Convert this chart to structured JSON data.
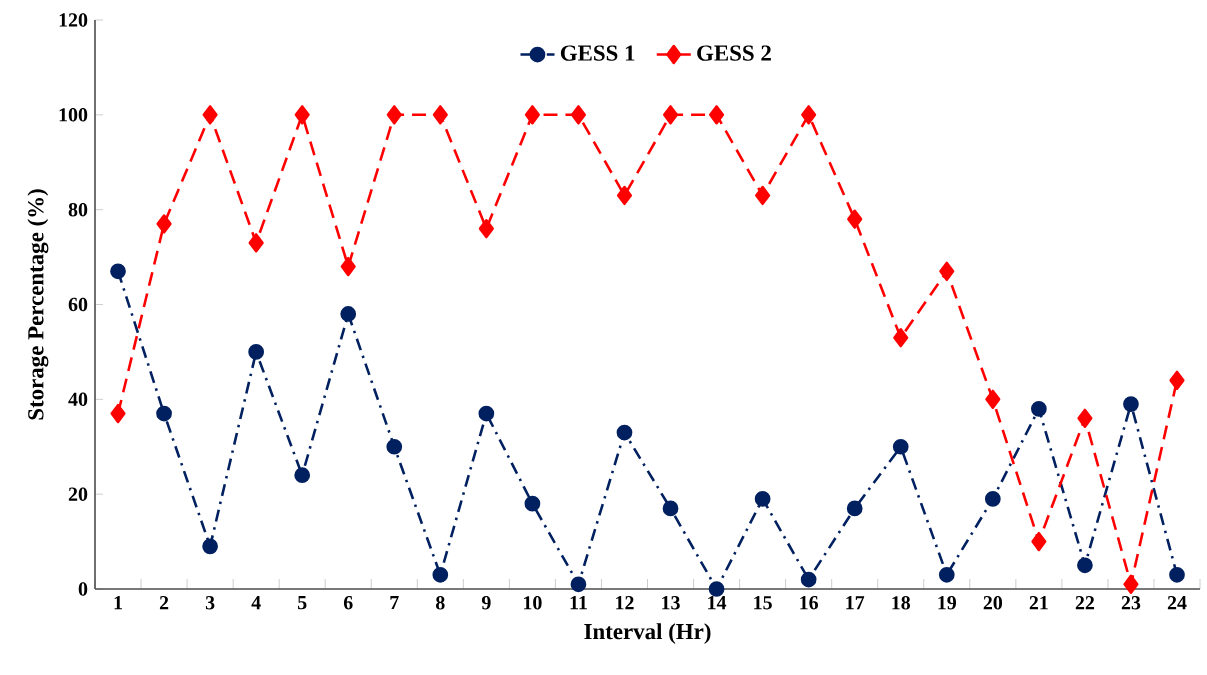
{
  "chart_data": {
    "type": "line",
    "xlabel": "Interval (Hr)",
    "ylabel": "Storage Percentage (%)",
    "categories": [
      "1",
      "2",
      "3",
      "4",
      "5",
      "6",
      "7",
      "8",
      "9",
      "10",
      "11",
      "12",
      "13",
      "14",
      "15",
      "16",
      "17",
      "18",
      "19",
      "20",
      "21",
      "22",
      "23",
      "24"
    ],
    "ylim": [
      0,
      120
    ],
    "yticks": [
      0,
      20,
      40,
      60,
      80,
      100,
      120
    ],
    "legend": "top",
    "series": [
      {
        "name": "GESS 1",
        "color": "#002060",
        "marker": "circle",
        "line_style": "dashdot",
        "values": [
          67,
          37,
          9,
          50,
          24,
          58,
          30,
          3,
          37,
          18,
          1,
          33,
          17,
          0,
          19,
          2,
          17,
          30,
          3,
          19,
          38,
          5,
          39,
          3
        ]
      },
      {
        "name": "GESS 2",
        "color": "#ff0000",
        "marker": "diamond",
        "line_style": "dashed",
        "values": [
          37,
          77,
          100,
          73,
          100,
          68,
          100,
          100,
          76,
          100,
          100,
          83,
          100,
          100,
          83,
          100,
          78,
          53,
          67,
          40,
          10,
          36,
          1,
          44
        ]
      }
    ]
  }
}
